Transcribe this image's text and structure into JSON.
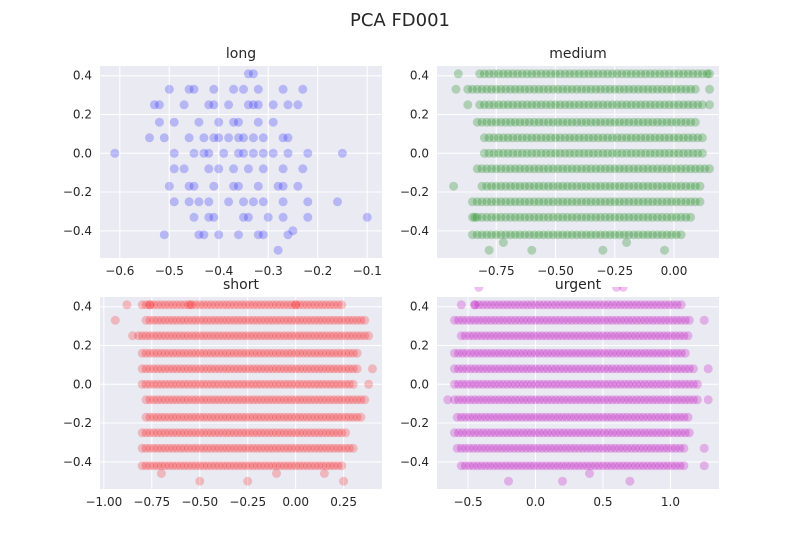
{
  "figure": {
    "title": "PCA FD001"
  },
  "chart_data": [
    {
      "type": "scatter",
      "title": "long",
      "color": "#0000ff",
      "alpha": 0.22,
      "xlim": [
        -0.64,
        -0.07
      ],
      "ylim": [
        -0.54,
        0.45
      ],
      "xticks": [
        -0.6,
        -0.5,
        -0.4,
        -0.3,
        -0.2,
        -0.1
      ],
      "xtick_labels": [
        "−0.6",
        "−0.5",
        "−0.4",
        "−0.3",
        "−0.2",
        "−0.1"
      ],
      "yticks": [
        -0.4,
        -0.2,
        0.0,
        0.2,
        0.4
      ],
      "ytick_labels": [
        "−0.4",
        "−0.2",
        "0.0",
        "0.2",
        "0.4"
      ],
      "points": [
        [
          -0.34,
          0.41
        ],
        [
          -0.33,
          0.41
        ],
        [
          -0.5,
          0.33
        ],
        [
          -0.46,
          0.33
        ],
        [
          -0.45,
          0.33
        ],
        [
          -0.41,
          0.33
        ],
        [
          -0.37,
          0.33
        ],
        [
          -0.35,
          0.33
        ],
        [
          -0.32,
          0.33
        ],
        [
          -0.27,
          0.33
        ],
        [
          -0.23,
          0.33
        ],
        [
          -0.53,
          0.25
        ],
        [
          -0.52,
          0.25
        ],
        [
          -0.47,
          0.25
        ],
        [
          -0.42,
          0.25
        ],
        [
          -0.41,
          0.25
        ],
        [
          -0.38,
          0.25
        ],
        [
          -0.34,
          0.25
        ],
        [
          -0.33,
          0.25
        ],
        [
          -0.32,
          0.25
        ],
        [
          -0.29,
          0.25
        ],
        [
          -0.26,
          0.25
        ],
        [
          -0.24,
          0.25
        ],
        [
          -0.52,
          0.16
        ],
        [
          -0.49,
          0.16
        ],
        [
          -0.44,
          0.16
        ],
        [
          -0.4,
          0.16
        ],
        [
          -0.37,
          0.16
        ],
        [
          -0.36,
          0.16
        ],
        [
          -0.32,
          0.16
        ],
        [
          -0.29,
          0.16
        ],
        [
          -0.54,
          0.08
        ],
        [
          -0.51,
          0.08
        ],
        [
          -0.46,
          0.08
        ],
        [
          -0.43,
          0.08
        ],
        [
          -0.41,
          0.08
        ],
        [
          -0.4,
          0.08
        ],
        [
          -0.38,
          0.08
        ],
        [
          -0.36,
          0.08
        ],
        [
          -0.35,
          0.08
        ],
        [
          -0.33,
          0.08
        ],
        [
          -0.31,
          0.08
        ],
        [
          -0.27,
          0.08
        ],
        [
          -0.26,
          0.08
        ],
        [
          -0.61,
          0.0
        ],
        [
          -0.49,
          0.0
        ],
        [
          -0.45,
          0.0
        ],
        [
          -0.43,
          0.0
        ],
        [
          -0.42,
          0.0
        ],
        [
          -0.39,
          0.0
        ],
        [
          -0.36,
          0.0
        ],
        [
          -0.35,
          0.0
        ],
        [
          -0.33,
          0.0
        ],
        [
          -0.31,
          0.0
        ],
        [
          -0.29,
          0.0
        ],
        [
          -0.26,
          0.0
        ],
        [
          -0.22,
          0.0
        ],
        [
          -0.15,
          0.0
        ],
        [
          -0.49,
          -0.08
        ],
        [
          -0.47,
          -0.08
        ],
        [
          -0.42,
          -0.08
        ],
        [
          -0.4,
          -0.08
        ],
        [
          -0.37,
          -0.08
        ],
        [
          -0.34,
          -0.08
        ],
        [
          -0.31,
          -0.08
        ],
        [
          -0.27,
          -0.08
        ],
        [
          -0.23,
          -0.08
        ],
        [
          -0.5,
          -0.17
        ],
        [
          -0.46,
          -0.17
        ],
        [
          -0.45,
          -0.17
        ],
        [
          -0.41,
          -0.17
        ],
        [
          -0.37,
          -0.17
        ],
        [
          -0.36,
          -0.17
        ],
        [
          -0.32,
          -0.17
        ],
        [
          -0.28,
          -0.17
        ],
        [
          -0.27,
          -0.17
        ],
        [
          -0.24,
          -0.17
        ],
        [
          -0.49,
          -0.25
        ],
        [
          -0.46,
          -0.25
        ],
        [
          -0.44,
          -0.25
        ],
        [
          -0.42,
          -0.25
        ],
        [
          -0.38,
          -0.25
        ],
        [
          -0.35,
          -0.25
        ],
        [
          -0.33,
          -0.25
        ],
        [
          -0.31,
          -0.25
        ],
        [
          -0.27,
          -0.25
        ],
        [
          -0.22,
          -0.25
        ],
        [
          -0.16,
          -0.25
        ],
        [
          -0.45,
          -0.33
        ],
        [
          -0.42,
          -0.33
        ],
        [
          -0.41,
          -0.33
        ],
        [
          -0.35,
          -0.33
        ],
        [
          -0.34,
          -0.33
        ],
        [
          -0.3,
          -0.33
        ],
        [
          -0.27,
          -0.33
        ],
        [
          -0.22,
          -0.33
        ],
        [
          -0.1,
          -0.33
        ],
        [
          -0.51,
          -0.42
        ],
        [
          -0.44,
          -0.42
        ],
        [
          -0.43,
          -0.42
        ],
        [
          -0.4,
          -0.42
        ],
        [
          -0.36,
          -0.42
        ],
        [
          -0.32,
          -0.42
        ],
        [
          -0.31,
          -0.42
        ],
        [
          -0.26,
          -0.42
        ],
        [
          -0.25,
          -0.4
        ],
        [
          -0.28,
          -0.5
        ]
      ]
    },
    {
      "type": "scatter",
      "title": "medium",
      "color": "#008000",
      "alpha": 0.25,
      "xlim": [
        -1.0,
        0.19
      ],
      "ylim": [
        -0.54,
        0.45
      ],
      "xticks": [
        -0.75,
        -0.5,
        -0.25,
        0.0
      ],
      "xtick_labels": [
        "−0.75",
        "−0.50",
        "−0.25",
        "0.00"
      ],
      "yticks": [
        -0.4,
        -0.2,
        0.0,
        0.2,
        0.4
      ],
      "ytick_labels": [
        "−0.4",
        "−0.2",
        "0.0",
        "0.2",
        "0.4"
      ],
      "bands": {
        "y": [
          0.41,
          0.33,
          0.25,
          0.16,
          0.08,
          0.0,
          -0.08,
          -0.17,
          -0.25,
          -0.33,
          -0.42
        ],
        "x_ranges": [
          [
            -0.82,
            0.14
          ],
          [
            -0.87,
            0.1
          ],
          [
            -0.82,
            0.13
          ],
          [
            -0.83,
            0.1
          ],
          [
            -0.8,
            0.12
          ],
          [
            -0.8,
            0.13
          ],
          [
            -0.83,
            0.16
          ],
          [
            -0.81,
            0.12
          ],
          [
            -0.85,
            0.12
          ],
          [
            -0.85,
            0.08
          ],
          [
            -0.85,
            0.03
          ]
        ],
        "step": 0.02
      },
      "points": [
        [
          -0.91,
          0.41
        ],
        [
          -0.92,
          0.33
        ],
        [
          -0.87,
          0.25
        ],
        [
          0.15,
          0.41
        ],
        [
          0.15,
          0.33
        ],
        [
          0.15,
          0.25
        ],
        [
          -0.93,
          -0.17
        ],
        [
          -0.84,
          -0.33
        ],
        [
          -0.78,
          -0.5
        ],
        [
          -0.6,
          -0.5
        ],
        [
          -0.3,
          -0.5
        ],
        [
          -0.04,
          -0.5
        ],
        [
          -0.72,
          -0.46
        ],
        [
          -0.2,
          -0.46
        ]
      ]
    },
    {
      "type": "scatter",
      "title": "short",
      "color": "#ff0000",
      "alpha": 0.22,
      "xlim": [
        -1.02,
        0.45
      ],
      "ylim": [
        -0.54,
        0.45
      ],
      "xticks": [
        -1.0,
        -0.75,
        -0.5,
        -0.25,
        0.0,
        0.25
      ],
      "xtick_labels": [
        "−1.00",
        "−0.75",
        "−0.50",
        "−0.25",
        "0.00",
        "0.25"
      ],
      "yticks": [
        -0.4,
        -0.2,
        0.0,
        0.2,
        0.4
      ],
      "ytick_labels": [
        "−0.4",
        "−0.2",
        "0.0",
        "0.2",
        "0.4"
      ],
      "bands": {
        "y": [
          0.41,
          0.33,
          0.25,
          0.16,
          0.08,
          0.0,
          -0.08,
          -0.17,
          -0.25,
          -0.33,
          -0.42
        ],
        "x_ranges": [
          [
            -0.8,
            0.25
          ],
          [
            -0.78,
            0.36
          ],
          [
            -0.82,
            0.37
          ],
          [
            -0.8,
            0.33
          ],
          [
            -0.8,
            0.32
          ],
          [
            -0.8,
            0.3
          ],
          [
            -0.78,
            0.37
          ],
          [
            -0.78,
            0.35
          ],
          [
            -0.8,
            0.27
          ],
          [
            -0.8,
            0.31
          ],
          [
            -0.8,
            0.25
          ]
        ],
        "step": 0.02
      },
      "points": [
        [
          -0.76,
          0.41
        ],
        [
          -0.88,
          0.41
        ],
        [
          -0.55,
          0.41
        ],
        [
          0.0,
          0.41
        ],
        [
          -0.94,
          0.33
        ],
        [
          -0.85,
          0.25
        ],
        [
          0.38,
          0.25
        ],
        [
          0.4,
          0.08
        ],
        [
          0.38,
          0.0
        ],
        [
          -0.5,
          -0.5
        ],
        [
          -0.25,
          -0.5
        ],
        [
          0.25,
          -0.5
        ],
        [
          -0.1,
          -0.46
        ],
        [
          -0.7,
          -0.46
        ],
        [
          0.15,
          -0.46
        ]
      ]
    },
    {
      "type": "scatter",
      "title": "urgent",
      "color": "#bf00bf",
      "alpha": 0.25,
      "xlim": [
        -0.73,
        1.36
      ],
      "ylim": [
        -0.54,
        0.45
      ],
      "xticks": [
        -0.5,
        0.0,
        0.5,
        1.0
      ],
      "xtick_labels": [
        "−0.5",
        "0.0",
        "0.5",
        "1.0"
      ],
      "yticks": [
        -0.4,
        -0.2,
        0.0,
        0.2,
        0.4
      ],
      "ytick_labels": [
        "−0.4",
        "−0.2",
        "0.0",
        "0.2",
        "0.4"
      ],
      "bands": {
        "y": [
          0.41,
          0.33,
          0.25,
          0.16,
          0.08,
          0.0,
          -0.08,
          -0.17,
          -0.25,
          -0.33,
          -0.42
        ],
        "x_ranges": [
          [
            -0.45,
            1.1
          ],
          [
            -0.6,
            1.15
          ],
          [
            -0.55,
            1.15
          ],
          [
            -0.6,
            1.12
          ],
          [
            -0.6,
            1.18
          ],
          [
            -0.6,
            1.2
          ],
          [
            -0.6,
            1.2
          ],
          [
            -0.58,
            1.15
          ],
          [
            -0.6,
            1.15
          ],
          [
            -0.58,
            1.1
          ],
          [
            -0.55,
            1.1
          ]
        ],
        "step": 0.03
      },
      "points": [
        [
          -0.55,
          0.41
        ],
        [
          -0.45,
          0.41
        ],
        [
          -0.42,
          0.5
        ],
        [
          0.6,
          0.5
        ],
        [
          0.65,
          0.5
        ],
        [
          1.25,
          0.33
        ],
        [
          1.28,
          0.08
        ],
        [
          1.28,
          -0.08
        ],
        [
          -0.65,
          -0.08
        ],
        [
          1.25,
          -0.33
        ],
        [
          1.25,
          -0.42
        ],
        [
          -0.2,
          -0.5
        ],
        [
          0.2,
          -0.5
        ],
        [
          0.7,
          -0.5
        ],
        [
          0.4,
          -0.46
        ]
      ]
    }
  ]
}
